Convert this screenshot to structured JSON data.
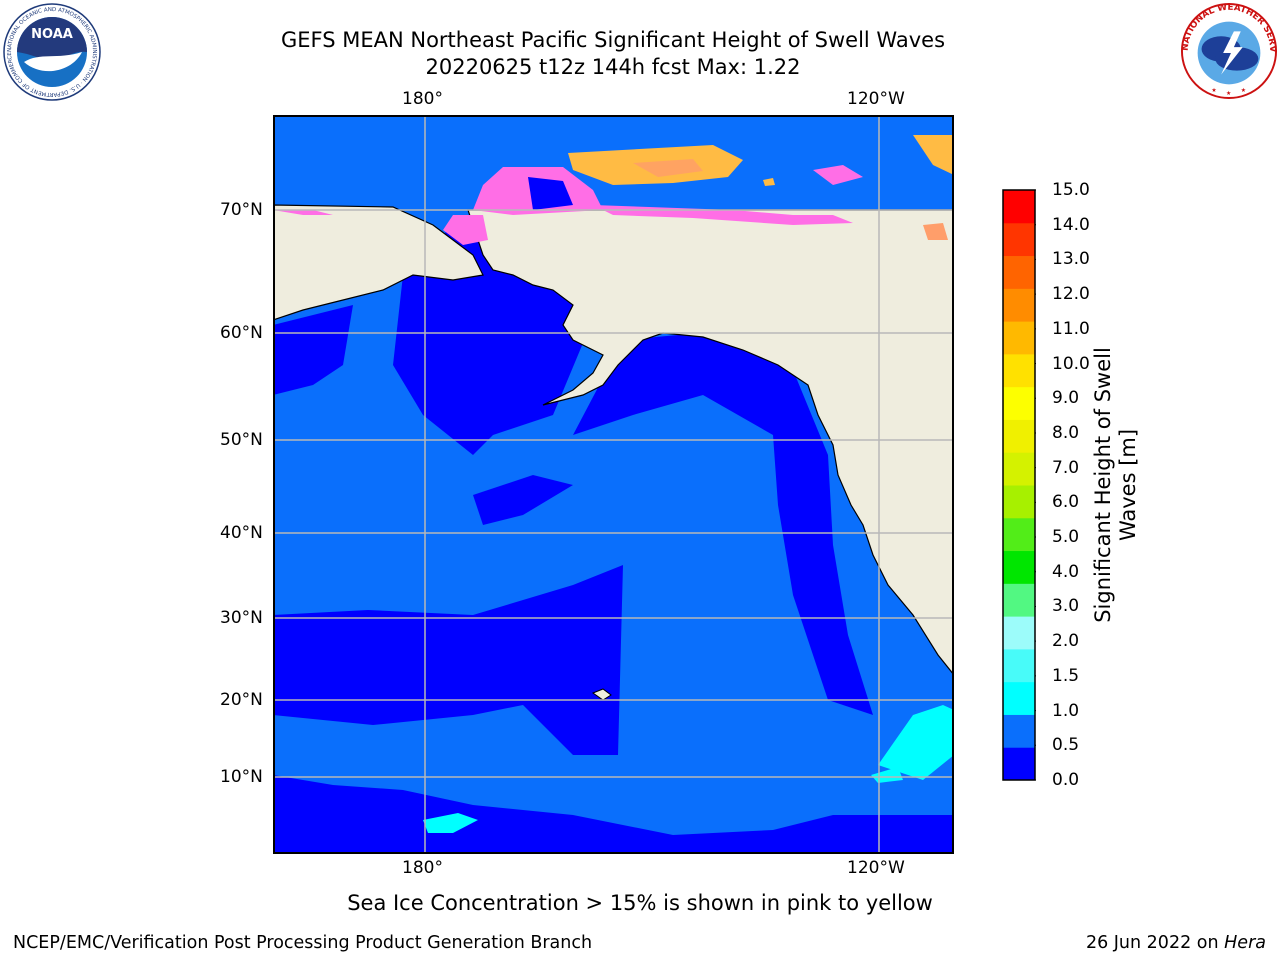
{
  "title": {
    "line1": "GEFS MEAN Northeast Pacific Significant Height of Swell Waves",
    "line2": "20220625 t12z 144h fcst   Max: 1.22"
  },
  "logos": {
    "noaa_text": "NOAA",
    "noaa_ring": "NATIONAL OCEANIC AND ATMOSPHERIC ADMINISTRATION · U.S. DEPARTMENT OF COMMERCE",
    "nws_ring": "NATIONAL WEATHER SERVICE"
  },
  "map": {
    "lon_labels_top": [
      "180°",
      "120°W"
    ],
    "lon_labels_bottom": [
      "180°",
      "120°W"
    ],
    "lat_labels": [
      "70°N",
      "60°N",
      "50°N",
      "40°N",
      "30°N",
      "20°N",
      "10°N"
    ],
    "grid": true,
    "colors": {
      "land": "#efedde",
      "ocean_0_05": "#0000ff",
      "ocean_05_10": "#0a6ffc",
      "ocean_10_15": "#00ffff",
      "ice_pink": "#ff6ee6",
      "ice_orange": "#ffbb44",
      "ice_yellow": "#ffe08a"
    }
  },
  "colorbar": {
    "label": "Significant Height of Swell\nWaves [m]",
    "ticks": [
      "15.0",
      "14.0",
      "13.0",
      "12.0",
      "11.0",
      "10.0",
      "9.0",
      "8.0",
      "7.0",
      "6.0",
      "5.0",
      "4.0",
      "3.0",
      "2.0",
      "1.5",
      "1.0",
      "0.5",
      "0.0"
    ],
    "colors": [
      "#0000ff",
      "#0a6ffc",
      "#00ffff",
      "#48fbf9",
      "#9cfcfa",
      "#52f882",
      "#00e600",
      "#52ed18",
      "#a7f000",
      "#d4f200",
      "#f0f000",
      "#fdff00",
      "#ffe100",
      "#ffb900",
      "#ff8c00",
      "#ff6400",
      "#ff3500",
      "#ff0000"
    ]
  },
  "note": "Sea Ice Concentration > 15% is shown in pink to yellow",
  "footer": {
    "left": "NCEP/EMC/Verification Post Processing Product Generation Branch",
    "right_prefix": "26 Jun 2022 on ",
    "right_host": "Hera"
  }
}
